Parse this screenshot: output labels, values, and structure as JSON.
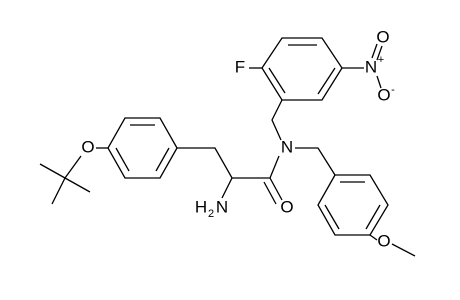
{
  "atoms": [
    {
      "label": "F"
    },
    {
      "label": "N"
    },
    {
      "label": "+"
    },
    {
      "label": "O"
    },
    {
      "label": "O"
    },
    {
      "label": "-"
    },
    {
      "label": "O"
    },
    {
      "label": "H"
    },
    {
      "label": "2"
    },
    {
      "label": "N"
    },
    {
      "label": "O"
    },
    {
      "label": "N"
    },
    {
      "label": "O"
    }
  ]
}
